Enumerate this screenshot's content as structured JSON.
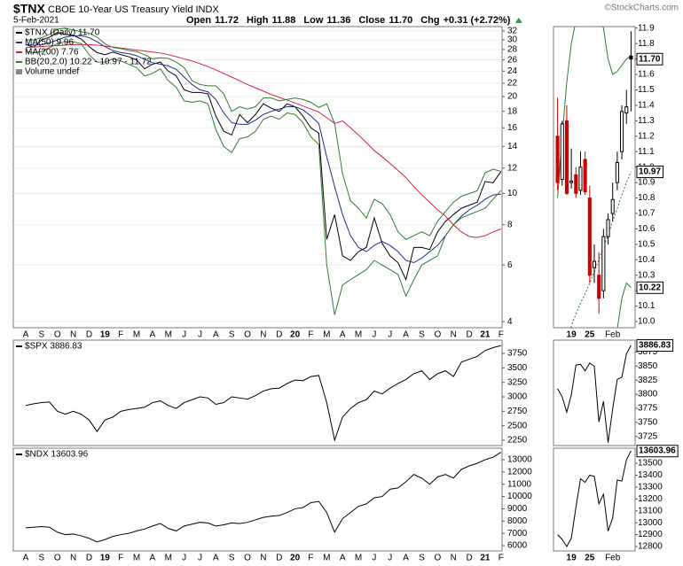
{
  "header": {
    "title": "$TNX",
    "subtitle": "CBOE 10-Year US Treasury Yield INDX",
    "watermark": "©StockCharts.com",
    "date": "5-Feb-2021",
    "quote": [
      {
        "label": "Open",
        "value": "11.72"
      },
      {
        "label": "High",
        "value": "11.88"
      },
      {
        "label": "Low",
        "value": "11.36"
      },
      {
        "label": "Close",
        "value": "11.70"
      },
      {
        "label": "Chg",
        "value": "+0.31 (+2.72%)"
      }
    ]
  },
  "chart_data": [
    {
      "type": "line",
      "log": true,
      "grid": true,
      "ylim": [
        3.83,
        33
      ],
      "yticks": [
        4,
        6,
        8,
        10,
        12,
        14,
        16,
        18,
        20,
        22,
        24,
        26,
        28,
        30,
        32
      ],
      "categories": [
        "A",
        null,
        "S",
        null,
        "O",
        null,
        "N",
        null,
        "D",
        null,
        "19",
        null,
        "F",
        null,
        "M",
        null,
        "A",
        null,
        "M",
        null,
        "J",
        null,
        "J",
        null,
        "A",
        null,
        "S",
        null,
        "O",
        null,
        "N",
        null,
        "D",
        null,
        "20",
        null,
        "F",
        null,
        "M",
        null,
        "A",
        null,
        "M",
        null,
        "J",
        null,
        "J",
        null,
        "A",
        null,
        "S",
        null,
        "O",
        null,
        "N",
        null,
        "D",
        null,
        "21",
        null,
        "F",
        null
      ],
      "series": [
        {
          "name": "$TNX (Daily) 11.70",
          "color": "#000000",
          "values": [
            29.0,
            28.5,
            30.0,
            30.6,
            31.6,
            31.2,
            31.0,
            30.2,
            28.6,
            27.4,
            27.0,
            27.5,
            27.0,
            26.6,
            26.0,
            24.4,
            25.2,
            25.6,
            24.0,
            23.2,
            21.0,
            20.6,
            20.6,
            20.4,
            17.4,
            15.6,
            15.2,
            17.6,
            16.6,
            17.6,
            19.0,
            18.4,
            18.0,
            19.0,
            18.6,
            17.4,
            16.0,
            15.4,
            7.2,
            8.6,
            6.4,
            6.2,
            6.6,
            6.8,
            8.4,
            7.0,
            6.4,
            6.1,
            5.4,
            6.8,
            6.8,
            6.7,
            7.6,
            8.2,
            8.6,
            9.0,
            9.2,
            9.4,
            10.9,
            10.8,
            11.7,
            null
          ]
        },
        {
          "name": "MA(50) 9.96",
          "color": "#1f2d8a",
          "values": [
            29.0,
            28.9,
            29.0,
            29.4,
            30.0,
            30.6,
            30.9,
            30.9,
            30.5,
            29.6,
            28.6,
            27.8,
            27.4,
            27.2,
            26.8,
            26.1,
            25.5,
            25.2,
            24.9,
            24.3,
            23.0,
            21.8,
            21.0,
            20.7,
            19.6,
            17.8,
            16.6,
            16.4,
            16.4,
            16.9,
            17.6,
            18.0,
            18.3,
            18.6,
            18.6,
            18.2,
            17.4,
            16.5,
            13.0,
            10.5,
            8.6,
            7.4,
            6.8,
            6.6,
            6.9,
            7.1,
            6.9,
            6.6,
            6.2,
            6.1,
            6.3,
            6.6,
            6.9,
            7.4,
            8.0,
            8.5,
            8.9,
            9.2,
            9.6,
            9.9,
            9.96,
            null
          ]
        },
        {
          "name": "MA(200) 7.76",
          "color": "#c8283c",
          "values": [
            28.4,
            28.5,
            28.6,
            28.7,
            28.8,
            28.9,
            29.0,
            29.0,
            29.0,
            28.9,
            28.7,
            28.5,
            28.3,
            28.1,
            27.9,
            27.7,
            27.5,
            27.3,
            27.0,
            26.6,
            26.2,
            25.8,
            25.3,
            24.8,
            24.2,
            23.6,
            23.0,
            22.4,
            21.8,
            21.3,
            20.8,
            20.3,
            19.9,
            19.5,
            19.1,
            18.7,
            18.3,
            17.9,
            17.2,
            16.5,
            16.8,
            16.0,
            15.2,
            14.4,
            13.6,
            13.0,
            12.4,
            11.8,
            11.2,
            10.5,
            9.9,
            9.4,
            8.9,
            8.5,
            8.0,
            7.6,
            7.35,
            7.3,
            7.4,
            7.6,
            7.76,
            null
          ]
        },
        {
          "name": "BB(20,2.0) 10.22 - 10.97 - 11.72",
          "color": "#2e7d32",
          "values": [
            30.0,
            30.0,
            30.5,
            31.2,
            32.4,
            32.6,
            32.2,
            31.8,
            31.5,
            30.6,
            29.2,
            28.4,
            28.2,
            27.8,
            27.6,
            27.0,
            26.2,
            26.4,
            26.3,
            25.6,
            24.6,
            22.4,
            21.8,
            21.6,
            21.6,
            20.4,
            18.0,
            18.6,
            18.3,
            18.6,
            19.8,
            19.8,
            19.4,
            19.6,
            19.8,
            19.6,
            19.2,
            18.5,
            19.0,
            16.5,
            11.5,
            9.5,
            9.0,
            8.4,
            9.6,
            9.3,
            8.6,
            7.6,
            7.2,
            7.4,
            7.6,
            7.4,
            8.2,
            8.8,
            9.4,
            9.8,
            10.0,
            10.2,
            11.6,
            11.9,
            11.72,
            null
          ],
          "lower": [
            27.6,
            27.4,
            27.6,
            28.4,
            29.2,
            29.6,
            29.6,
            29.2,
            27.0,
            25.6,
            25.6,
            26.2,
            25.8,
            25.2,
            24.6,
            23.2,
            23.6,
            24.4,
            22.4,
            21.4,
            19.4,
            19.2,
            19.4,
            19.0,
            15.8,
            14.0,
            13.4,
            14.8,
            15.0,
            15.6,
            17.0,
            17.4,
            17.0,
            17.8,
            17.6,
            16.6,
            15.0,
            14.2,
            6.0,
            4.2,
            5.2,
            5.4,
            5.6,
            5.8,
            6.2,
            6.0,
            5.8,
            5.6,
            4.8,
            5.4,
            6.0,
            6.2,
            6.4,
            7.4,
            8.0,
            8.4,
            8.6,
            8.8,
            9.0,
            9.6,
            10.22,
            null
          ]
        }
      ],
      "legend_extra": "Volume undef"
    },
    {
      "type": "candlestick",
      "ylim": [
        9.96,
        11.91
      ],
      "yticks": [
        {
          "value": 10,
          "label": "10.0"
        },
        10.1,
        10.2,
        10.3,
        10.4,
        10.5,
        10.6,
        10.7,
        10.8,
        10.9,
        {
          "value": 11,
          "label": "11.0"
        },
        11.1,
        11.2,
        11.3,
        11.4,
        11.5,
        11.6,
        11.7,
        11.8,
        11.9
      ],
      "categories": [
        null,
        null,
        null,
        "19",
        null,
        null,
        null,
        "25",
        null,
        null,
        null,
        null,
        "Feb",
        null,
        null,
        null,
        null
      ],
      "open": [
        11.2,
        10.92,
        11.3,
        10.9,
        10.95,
        10.85,
        11.05,
        10.8,
        10.35,
        10.3,
        10.2,
        10.55,
        10.7,
        10.9,
        11.1,
        11.35,
        11.72
      ],
      "high": [
        11.45,
        11.3,
        11.4,
        11.12,
        11.0,
        11.1,
        11.1,
        10.88,
        10.5,
        10.45,
        10.6,
        10.7,
        10.9,
        11.1,
        11.4,
        11.5,
        11.88
      ],
      "low": [
        10.85,
        10.88,
        10.82,
        10.86,
        10.8,
        10.82,
        10.82,
        10.25,
        10.25,
        10.05,
        10.15,
        10.5,
        10.65,
        10.85,
        11.05,
        11.28,
        11.36
      ],
      "close": [
        10.9,
        11.28,
        10.83,
        10.91,
        10.83,
        11.0,
        10.84,
        10.3,
        10.39,
        10.15,
        10.55,
        10.66,
        10.79,
        11.03,
        11.36,
        11.39,
        11.7
      ],
      "up_color": "#000000",
      "down_color": "#cc0000",
      "close_label": "11.70",
      "bands": {
        "color": "#2e7d32",
        "upper": [
          10.8,
          11.2,
          11.55,
          11.8,
          11.95,
          12.05,
          12.1,
          12.1,
          12.05,
          11.98,
          11.9,
          11.7,
          11.6,
          11.62,
          11.66,
          11.7,
          11.72
        ],
        "middle": [
          9.8,
          9.85,
          9.9,
          9.97,
          10.05,
          10.12,
          10.18,
          10.25,
          10.32,
          10.4,
          10.48,
          10.56,
          10.65,
          10.73,
          10.82,
          10.9,
          10.97
        ],
        "lower": [
          9.6,
          9.5,
          9.45,
          9.4,
          9.38,
          9.38,
          9.4,
          9.42,
          9.45,
          9.5,
          9.6,
          9.7,
          9.85,
          9.95,
          10.15,
          10.25,
          10.22
        ],
        "middle_label": "10.97",
        "lower_label": "10.22"
      }
    },
    {
      "type": "line",
      "ylim": [
        2158,
        3980
      ],
      "yticks": [
        2250,
        2500,
        2750,
        3000,
        3250,
        3500,
        3750
      ],
      "series": [
        {
          "name": "$SPX 3886.83",
          "color": "#000000",
          "values": [
            2850,
            2880,
            2900,
            2910,
            2750,
            2700,
            2750,
            2700,
            2600,
            2400,
            2600,
            2650,
            2750,
            2780,
            2800,
            2820,
            2900,
            2930,
            2850,
            2800,
            2900,
            2950,
            3000,
            2980,
            2870,
            2900,
            3000,
            2980,
            2960,
            3020,
            3100,
            3140,
            3150,
            3230,
            3290,
            3280,
            3350,
            3370,
            2900,
            2250,
            2650,
            2800,
            2900,
            2950,
            3100,
            3050,
            3150,
            3230,
            3300,
            3400,
            3450,
            3300,
            3400,
            3450,
            3350,
            3600,
            3650,
            3700,
            3800,
            3850,
            3886.83,
            null
          ]
        }
      ]
    },
    {
      "type": "line",
      "ylim": [
        3709,
        3896
      ],
      "yticks": [
        3725,
        3750,
        3775,
        3800,
        3825,
        3850,
        3875
      ],
      "series": [
        {
          "color": "#000000",
          "values": [
            3809.84,
            3795.54,
            3768.25,
            3798.91,
            3851.85,
            3853.07,
            3841.47,
            3855.36,
            3849.62,
            3750.77,
            3787.38,
            3714.24,
            3773.86,
            3826.31,
            3830.17,
            3871.74,
            3886.83
          ]
        }
      ],
      "last_label": "3886.83"
    },
    {
      "type": "line",
      "ylim": [
        5570,
        13935
      ],
      "yticks": [
        6000,
        7000,
        8000,
        9000,
        10000,
        11000,
        12000,
        13000
      ],
      "categories": [
        "A",
        null,
        "S",
        null,
        "O",
        null,
        "N",
        null,
        "D",
        null,
        "19",
        null,
        "F",
        null,
        "M",
        null,
        "A",
        null,
        "M",
        null,
        "J",
        null,
        "J",
        null,
        "A",
        null,
        "S",
        null,
        "O",
        null,
        "N",
        null,
        "D",
        null,
        "20",
        null,
        "F",
        null,
        "M",
        null,
        "A",
        null,
        "M",
        null,
        "J",
        null,
        "J",
        null,
        "A",
        null,
        "S",
        null,
        "O",
        null,
        "N",
        null,
        "D",
        null,
        "21",
        null,
        "F",
        null
      ],
      "series": [
        {
          "name": "$NDX 13603.96",
          "color": "#000000",
          "values": [
            7450,
            7500,
            7550,
            7500,
            7100,
            6900,
            6950,
            6800,
            6600,
            6300,
            6500,
            6750,
            6900,
            7000,
            7200,
            7350,
            7600,
            7800,
            7400,
            7200,
            7600,
            7750,
            7900,
            7850,
            7600,
            7700,
            7850,
            7800,
            7900,
            8100,
            8300,
            8400,
            8450,
            8700,
            9000,
            9100,
            9500,
            9600,
            8700,
            7100,
            8200,
            8700,
            9200,
            9400,
            9900,
            10000,
            10600,
            10700,
            11200,
            11800,
            11500,
            11000,
            11600,
            11800,
            11500,
            12200,
            12500,
            12700,
            13000,
            13200,
            13603.96,
            null
          ]
        }
      ]
    },
    {
      "type": "line",
      "ylim": [
        12763,
        13627
      ],
      "yticks": [
        12800,
        12900,
        13000,
        13100,
        13200,
        13300,
        13400,
        13500
      ],
      "categories": [
        null,
        null,
        null,
        "19",
        null,
        null,
        null,
        "25",
        null,
        null,
        null,
        null,
        "Feb",
        null,
        null,
        null,
        null
      ],
      "series": [
        {
          "color": "#000000",
          "values": [
            12900,
            12860,
            12800,
            12870,
            13130,
            13370,
            13340,
            13400,
            13390,
            13160,
            13240,
            12930,
            13040,
            13360,
            13350,
            13530,
            13603.96
          ]
        }
      ],
      "last_label": "13603.96"
    }
  ]
}
